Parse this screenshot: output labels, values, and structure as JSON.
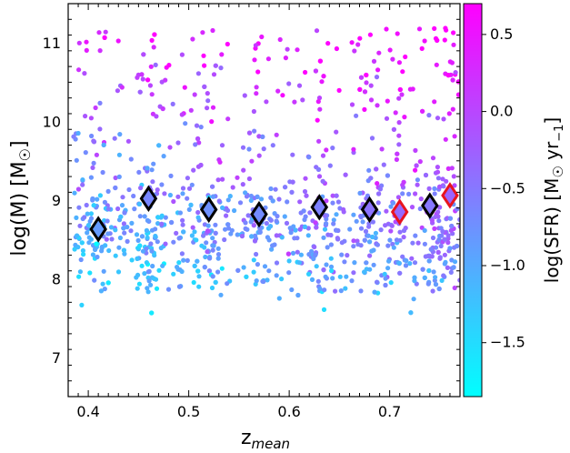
{
  "chart_data": {
    "type": "scatter",
    "xlabel": "z",
    "xlabel_sub": "mean",
    "ylabel": "log(M) [M",
    "ylabel_sym": "☉",
    "ylabel_end": "]",
    "colorbar_label": "log(SFR) [M",
    "colorbar_label_sym": "☉",
    "colorbar_label_mid": " yr",
    "colorbar_label_sub": "−1",
    "colorbar_label_end": "]",
    "xlim": [
      0.38,
      0.77
    ],
    "ylim": [
      6.5,
      11.5
    ],
    "clim": [
      -1.85,
      0.7
    ],
    "xticks": [
      0.4,
      0.5,
      0.6,
      0.7
    ],
    "xtick_labels": [
      "0.4",
      "0.5",
      "0.6",
      "0.7"
    ],
    "yticks": [
      7,
      8,
      9,
      10,
      11
    ],
    "ytick_labels": [
      "7",
      "8",
      "9",
      "10",
      "11"
    ],
    "cticks": [
      -1.5,
      -1.0,
      -0.5,
      0.0,
      0.5
    ],
    "ctick_labels": [
      "−1.5",
      "−1.0",
      "−0.5",
      "0.0",
      "0.5"
    ],
    "colormap": [
      "#00ffff",
      "#ff00ff"
    ],
    "grid": false,
    "scatter_point_count": 1200,
    "diamonds": [
      {
        "x": 0.41,
        "y": 8.63,
        "sfr": -0.85,
        "edge": "#000000"
      },
      {
        "x": 0.46,
        "y": 9.02,
        "sfr": -0.65,
        "edge": "#000000"
      },
      {
        "x": 0.52,
        "y": 8.88,
        "sfr": -0.75,
        "edge": "#000000"
      },
      {
        "x": 0.57,
        "y": 8.82,
        "sfr": -0.7,
        "edge": "#000000"
      },
      {
        "x": 0.63,
        "y": 8.91,
        "sfr": -0.6,
        "edge": "#000000"
      },
      {
        "x": 0.68,
        "y": 8.88,
        "sfr": -0.45,
        "edge": "#000000"
      },
      {
        "x": 0.71,
        "y": 8.85,
        "sfr": -0.35,
        "edge": "#e8141e"
      },
      {
        "x": 0.74,
        "y": 8.93,
        "sfr": -0.5,
        "edge": "#000000"
      },
      {
        "x": 0.76,
        "y": 9.06,
        "sfr": -0.3,
        "edge": "#e8141e"
      }
    ]
  }
}
